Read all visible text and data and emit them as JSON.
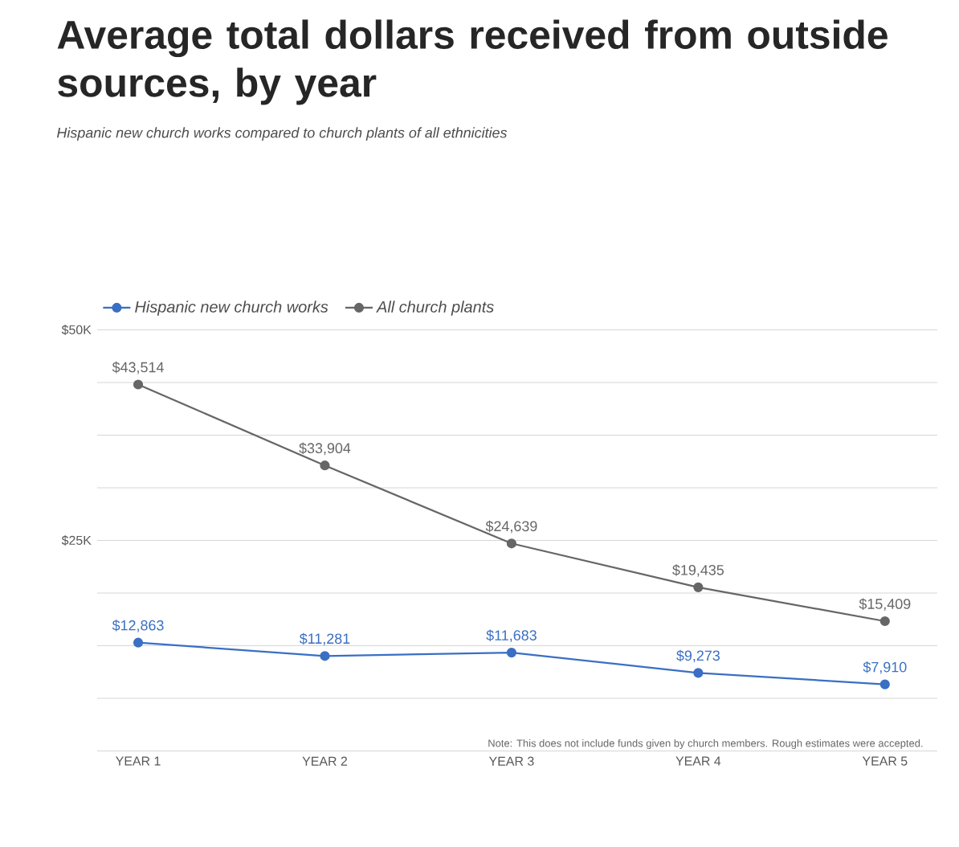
{
  "chart_data": {
    "type": "line",
    "title": "Average total dollars received from outside sources, by year",
    "subtitle": "Hispanic new church works compared to church plants of all ethnicities",
    "categories": [
      "YEAR 1",
      "YEAR 2",
      "YEAR 3",
      "YEAR 4",
      "YEAR 5"
    ],
    "series": [
      {
        "name": "Hispanic new church works",
        "color": "#3a6fc4",
        "values": [
          12863,
          11281,
          11683,
          9273,
          7910
        ],
        "value_labels": [
          "$12,863",
          "$11,281",
          "$11,683",
          "$9,273",
          "$7,910"
        ]
      },
      {
        "name": "All church plants",
        "color": "#666666",
        "values": [
          43514,
          33904,
          24639,
          19435,
          15409
        ],
        "value_labels": [
          "$43,514",
          "$33,904",
          "$24,639",
          "$19,435",
          "$15,409"
        ]
      }
    ],
    "ylim": [
      0,
      50000
    ],
    "yticks": [
      {
        "value": 0,
        "label": null
      },
      {
        "value": 6250,
        "label": null
      },
      {
        "value": 12500,
        "label": null
      },
      {
        "value": 18750,
        "label": null
      },
      {
        "value": 25000,
        "label": "$25K"
      },
      {
        "value": 31250,
        "label": null
      },
      {
        "value": 37500,
        "label": null
      },
      {
        "value": 43750,
        "label": null
      },
      {
        "value": 50000,
        "label": "$50K"
      }
    ],
    "grid": "y",
    "legend": "top left",
    "marker": "circle",
    "line_style": "solid",
    "annotations": [
      "Note: This does not include funds given by church members. Rough estimates were accepted."
    ]
  }
}
